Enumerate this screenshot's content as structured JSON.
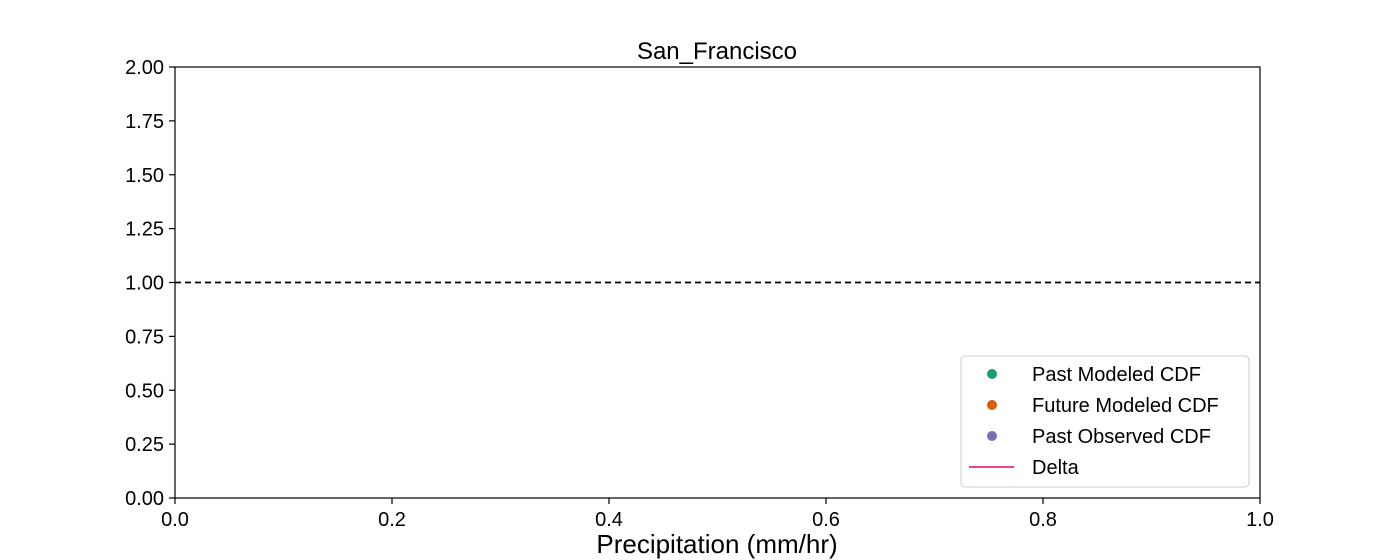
{
  "chart_data": {
    "type": "line",
    "title": "San_Francisco",
    "xlabel": "Precipitation (mm/hr)",
    "ylabel": "",
    "xlim": [
      0.0,
      1.0
    ],
    "ylim": [
      0.0,
      2.0
    ],
    "x_ticks": [
      "0.0",
      "0.2",
      "0.4",
      "0.6",
      "0.8",
      "1.0"
    ],
    "y_ticks": [
      "0.00",
      "0.25",
      "0.50",
      "0.75",
      "1.00",
      "1.25",
      "1.50",
      "1.75",
      "2.00"
    ],
    "reference_line": {
      "y": 1.0,
      "style": "dashed",
      "color": "#000000"
    },
    "series": [
      {
        "name": "Past Modeled CDF",
        "marker": "circle",
        "color": "#1b9e77",
        "x": [],
        "y": []
      },
      {
        "name": "Future Modeled CDF",
        "marker": "circle",
        "color": "#d95f02",
        "x": [],
        "y": []
      },
      {
        "name": "Past Observed CDF",
        "marker": "circle",
        "color": "#7570b3",
        "x": [],
        "y": []
      },
      {
        "name": "Delta",
        "marker": "line",
        "color": "#e7298a",
        "x": [],
        "y": []
      }
    ],
    "legend": {
      "position": "lower-right"
    },
    "grid": false
  }
}
